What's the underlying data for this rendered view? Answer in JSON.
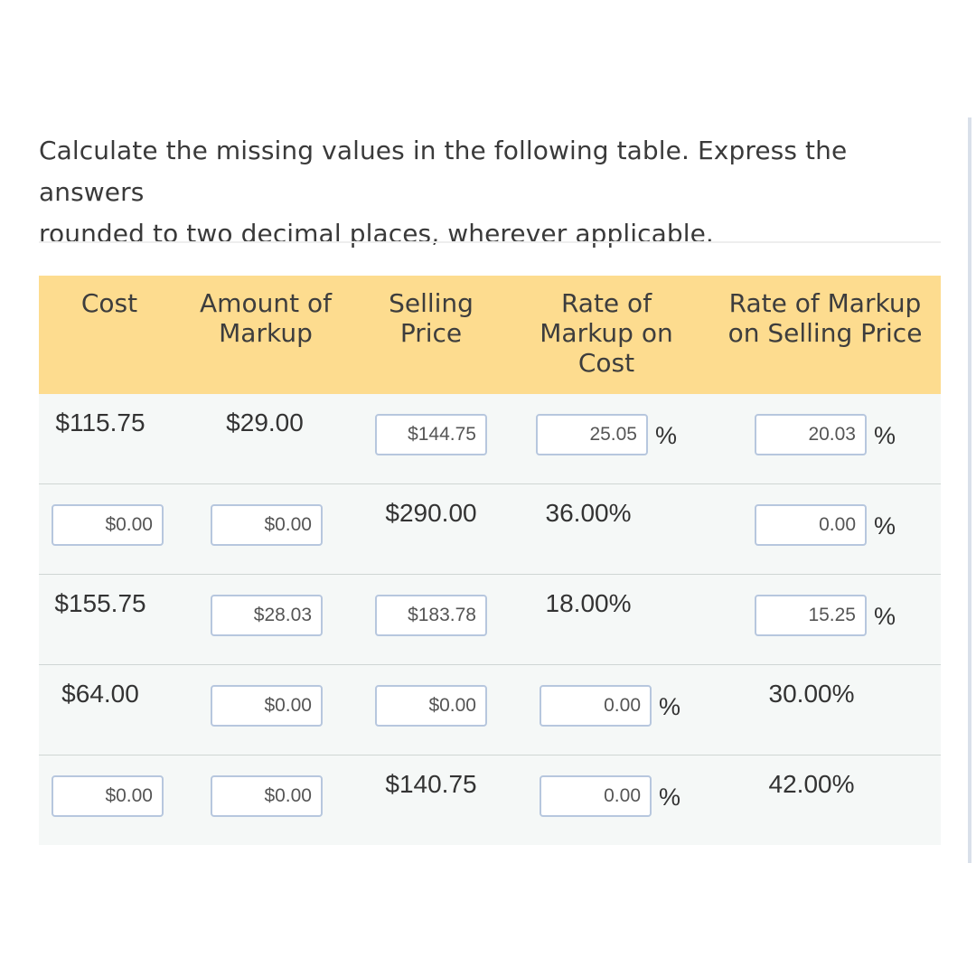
{
  "question": {
    "line1": "Calculate the missing values in the following table. Express the answers",
    "line2": "rounded to two decimal places, wherever applicable."
  },
  "headers": {
    "cost": [
      "Cost"
    ],
    "markup": [
      "Amount of",
      "Markup"
    ],
    "selling": [
      "Selling",
      "Price"
    ],
    "rate_cost": [
      "Rate of",
      "Markup on",
      "Cost"
    ],
    "rate_selling": [
      "Rate of Markup",
      "on Selling Price"
    ]
  },
  "percent_sign": "%",
  "rows": [
    {
      "cost": {
        "text": "$115.75"
      },
      "markup": {
        "text": "$29.00"
      },
      "selling": {
        "input": "$144.75"
      },
      "rate_cost": {
        "input": "25.05"
      },
      "rate_selling": {
        "input": "20.03"
      }
    },
    {
      "cost": {
        "input": "$0.00"
      },
      "markup": {
        "input": "$0.00"
      },
      "selling": {
        "text": "$290.00"
      },
      "rate_cost": {
        "text": "36.00%"
      },
      "rate_selling": {
        "input": "0.00"
      }
    },
    {
      "cost": {
        "text": "$155.75"
      },
      "markup": {
        "input": "$28.03"
      },
      "selling": {
        "input": "$183.78"
      },
      "rate_cost": {
        "text": "18.00%"
      },
      "rate_selling": {
        "input": "15.25"
      }
    },
    {
      "cost": {
        "text": "$64.00"
      },
      "markup": {
        "input": "$0.00"
      },
      "selling": {
        "input": "$0.00"
      },
      "rate_cost": {
        "input": "0.00"
      },
      "rate_selling": {
        "text": "30.00%"
      }
    },
    {
      "cost": {
        "input": "$0.00"
      },
      "markup": {
        "input": "$0.00"
      },
      "selling": {
        "text": "$140.75"
      },
      "rate_cost": {
        "input": "0.00"
      },
      "rate_selling": {
        "text": "42.00%"
      }
    }
  ]
}
